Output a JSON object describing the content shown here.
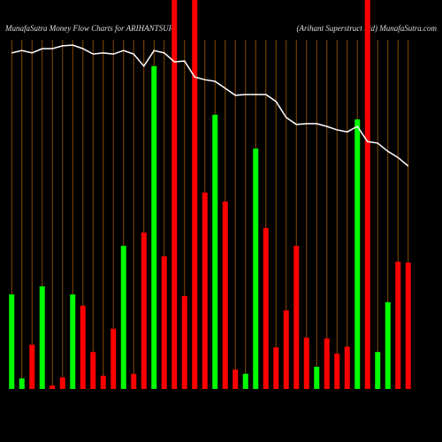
{
  "chart_data": {
    "type": "bar",
    "title": "MunafaSutra  Money Flow  Charts for ARIHANTSUP",
    "subtitle": "(Arihant Superstruct Ltd) MunafaSutra.com",
    "categories": [
      null,
      null,
      null,
      null,
      null,
      null,
      null,
      null,
      null,
      null,
      null,
      null,
      null,
      null,
      null,
      null,
      null,
      null,
      null,
      null,
      null,
      null,
      null,
      null,
      null,
      null,
      null,
      null,
      null,
      null,
      null,
      null,
      null,
      null,
      null,
      null,
      null,
      null,
      null,
      null
    ],
    "ylim": [
      0,
      100
    ],
    "series": [
      {
        "name": null,
        "colors": [
          "#00ff00",
          "#00ff00",
          "#ff0000",
          "#00ff00",
          "#ff0000",
          "#ff0000",
          "#00ff00",
          "#ff0000",
          "#ff0000",
          "#ff0000",
          "#ff0000",
          "#00ff00",
          "#ff0000",
          "#ff0000",
          "#00ff00",
          "#ff0000",
          "#ff0000",
          "#ff0000",
          "#ff0000",
          "#ff0000",
          "#00ff00",
          "#ff0000",
          "#ff0000",
          "#00ff00",
          "#00ff00",
          "#ff0000",
          "#ff0000",
          "#ff0000",
          "#ff0000",
          "#ff0000",
          "#00ff00",
          "#ff0000",
          "#ff0000",
          "#ff0000",
          "#00ff00",
          "#ff0000",
          "#00ff00",
          "#00ff00",
          "#ff0000",
          "#ff0000"
        ],
        "values": [
          24.3,
          2.7,
          11.4,
          26.4,
          0.9,
          3.0,
          24.3,
          21.4,
          9.5,
          3.4,
          15.5,
          36.8,
          3.9,
          40.2,
          83.0,
          34.1,
          100,
          23.9,
          100,
          50.5,
          70.5,
          48.2,
          5.0,
          3.9,
          61.8,
          41.4,
          10.7,
          20.2,
          36.8,
          13.2,
          5.7,
          13.0,
          9.1,
          10.9,
          69.3,
          100,
          9.5,
          22.3,
          32.7,
          32.5
        ]
      },
      {
        "name": null,
        "type": "line",
        "color": "#ffffff",
        "values": [
          86.4,
          87.0,
          86.4,
          87.5,
          87.5,
          88.2,
          88.4,
          87.5,
          86.1,
          86.4,
          86.1,
          87.0,
          86.1,
          83.0,
          87.0,
          86.4,
          84.1,
          84.3,
          80.2,
          79.5,
          79.1,
          77.3,
          75.5,
          75.7,
          75.7,
          75.7,
          73.9,
          69.8,
          68.0,
          68.2,
          68.2,
          67.5,
          66.6,
          66.1,
          67.5,
          63.6,
          63.2,
          61.1,
          59.5,
          57.3
        ]
      }
    ]
  }
}
